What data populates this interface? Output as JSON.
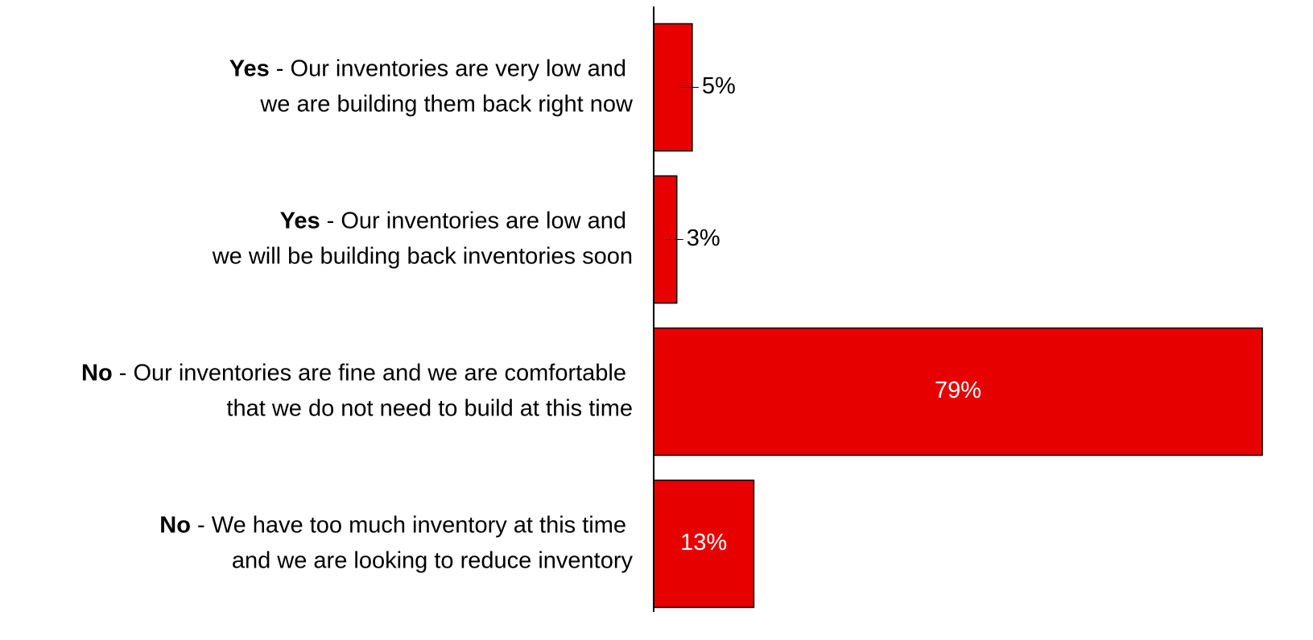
{
  "chart_data": {
    "type": "barh",
    "categories": [
      "Yes - Our inventories are very low and\nwe are building them back right now",
      "Yes - Our inventories are low and\nwe will be building back inventories soon",
      "No - Our inventories are fine and we are comfortable\nthat we do not need to build at this time",
      "No - We have too much inventory at this time\nand we are looking to reduce inventory"
    ],
    "values": [
      5,
      3,
      79,
      13
    ],
    "value_labels": [
      "5%",
      "3%",
      "79%",
      "13%"
    ],
    "color": "#e60000"
  }
}
